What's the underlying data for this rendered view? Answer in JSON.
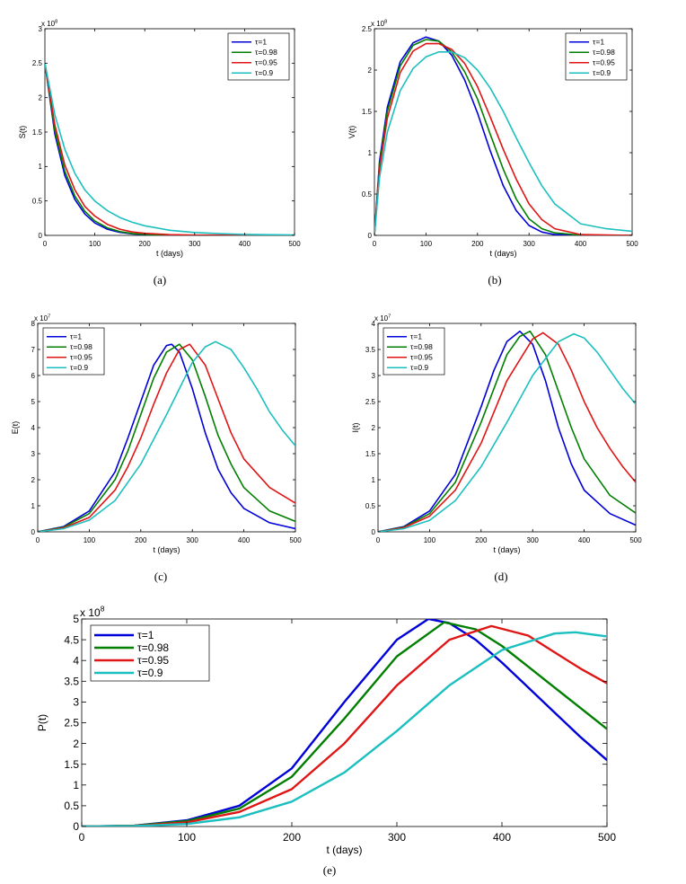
{
  "legend_labels": [
    "τ=1",
    "τ=0.98",
    "τ=0.95",
    "τ=0.9"
  ],
  "series_colors": [
    "#0000d8",
    "#007f00",
    "#e01515",
    "#1cbfbf"
  ],
  "chart_data": [
    {
      "id": "a",
      "caption": "(a)",
      "type": "line",
      "xlabel": "t (days)",
      "ylabel": "S(t)",
      "exponent_label": "x 10",
      "exponent_sup": "8",
      "xlim": [
        0,
        500
      ],
      "ylim": [
        0,
        3
      ],
      "xticks": [
        0,
        100,
        200,
        300,
        400,
        500
      ],
      "yticks": [
        0,
        0.5,
        1,
        1.5,
        2,
        2.5,
        3
      ],
      "legend_position": "top-right",
      "series": [
        {
          "name": "τ=1",
          "x": [
            0,
            20,
            40,
            60,
            80,
            100,
            125,
            150,
            175,
            200,
            250,
            300,
            500
          ],
          "y": [
            2.5,
            1.47,
            0.87,
            0.52,
            0.31,
            0.18,
            0.09,
            0.045,
            0.022,
            0.011,
            0.003,
            0.001,
            0
          ]
        },
        {
          "name": "τ=0.98",
          "x": [
            0,
            20,
            40,
            60,
            80,
            100,
            125,
            150,
            175,
            200,
            250,
            300,
            500
          ],
          "y": [
            2.5,
            1.52,
            0.93,
            0.57,
            0.35,
            0.21,
            0.11,
            0.055,
            0.028,
            0.015,
            0.004,
            0.001,
            0
          ]
        },
        {
          "name": "τ=0.95",
          "x": [
            0,
            20,
            40,
            60,
            80,
            100,
            125,
            150,
            175,
            200,
            250,
            300,
            500
          ],
          "y": [
            2.5,
            1.6,
            1.02,
            0.66,
            0.42,
            0.28,
            0.16,
            0.09,
            0.05,
            0.03,
            0.011,
            0.004,
            0
          ]
        },
        {
          "name": "τ=0.9",
          "x": [
            0,
            20,
            40,
            60,
            80,
            100,
            125,
            150,
            175,
            200,
            250,
            300,
            350,
            400,
            500
          ],
          "y": [
            2.5,
            1.75,
            1.25,
            0.9,
            0.66,
            0.5,
            0.36,
            0.26,
            0.19,
            0.14,
            0.075,
            0.042,
            0.025,
            0.015,
            0.005
          ]
        }
      ]
    },
    {
      "id": "b",
      "caption": "(b)",
      "type": "line",
      "xlabel": "t (days)",
      "ylabel": "V(t)",
      "exponent_label": "x 10",
      "exponent_sup": "8",
      "xlim": [
        0,
        500
      ],
      "ylim": [
        0,
        2.5
      ],
      "xticks": [
        0,
        100,
        200,
        300,
        400,
        500
      ],
      "yticks": [
        0,
        0.5,
        1,
        1.5,
        2,
        2.5
      ],
      "legend_position": "top-right",
      "series": [
        {
          "name": "τ=1",
          "x": [
            0,
            10,
            25,
            50,
            75,
            100,
            125,
            150,
            175,
            200,
            225,
            250,
            275,
            300,
            325,
            350,
            400,
            500
          ],
          "y": [
            0,
            0.9,
            1.55,
            2.1,
            2.33,
            2.4,
            2.35,
            2.18,
            1.88,
            1.48,
            1.02,
            0.6,
            0.3,
            0.12,
            0.04,
            0.01,
            0,
            0
          ]
        },
        {
          "name": "τ=0.98",
          "x": [
            0,
            10,
            25,
            50,
            75,
            100,
            125,
            150,
            175,
            200,
            225,
            250,
            275,
            300,
            325,
            350,
            400,
            500
          ],
          "y": [
            0,
            0.85,
            1.5,
            2.05,
            2.3,
            2.37,
            2.35,
            2.22,
            1.98,
            1.65,
            1.22,
            0.8,
            0.44,
            0.2,
            0.08,
            0.03,
            0.002,
            0
          ]
        },
        {
          "name": "τ=0.95",
          "x": [
            0,
            10,
            25,
            50,
            75,
            100,
            125,
            150,
            175,
            200,
            225,
            250,
            275,
            300,
            325,
            350,
            400,
            500
          ],
          "y": [
            0,
            0.8,
            1.42,
            1.97,
            2.23,
            2.32,
            2.32,
            2.25,
            2.08,
            1.8,
            1.43,
            1.04,
            0.68,
            0.38,
            0.19,
            0.08,
            0.01,
            0
          ]
        },
        {
          "name": "τ=0.9",
          "x": [
            0,
            10,
            25,
            50,
            75,
            100,
            125,
            150,
            175,
            200,
            225,
            250,
            275,
            300,
            325,
            350,
            400,
            450,
            500
          ],
          "y": [
            0,
            0.7,
            1.25,
            1.75,
            2.02,
            2.16,
            2.22,
            2.22,
            2.15,
            2.0,
            1.78,
            1.5,
            1.18,
            0.88,
            0.6,
            0.38,
            0.14,
            0.08,
            0.05
          ]
        }
      ]
    },
    {
      "id": "c",
      "caption": "(c)",
      "type": "line",
      "xlabel": "t (days)",
      "ylabel": "E(t)",
      "exponent_label": "x 10",
      "exponent_sup": "7",
      "xlim": [
        0,
        500
      ],
      "ylim": [
        0,
        8
      ],
      "xticks": [
        0,
        100,
        200,
        300,
        400,
        500
      ],
      "yticks": [
        0,
        1,
        2,
        3,
        4,
        5,
        6,
        7,
        8
      ],
      "legend_position": "top-left",
      "series": [
        {
          "name": "τ=1",
          "x": [
            0,
            50,
            100,
            150,
            175,
            200,
            225,
            250,
            260,
            275,
            300,
            325,
            350,
            375,
            400,
            450,
            500
          ],
          "y": [
            0,
            0.2,
            0.8,
            2.3,
            3.6,
            5.0,
            6.4,
            7.15,
            7.2,
            6.9,
            5.5,
            3.8,
            2.4,
            1.5,
            0.9,
            0.35,
            0.12
          ]
        },
        {
          "name": "τ=0.98",
          "x": [
            0,
            50,
            100,
            150,
            175,
            200,
            225,
            250,
            275,
            300,
            325,
            350,
            375,
            400,
            450,
            500
          ],
          "y": [
            0,
            0.18,
            0.7,
            2.0,
            3.1,
            4.5,
            5.9,
            6.9,
            7.2,
            6.6,
            5.2,
            3.7,
            2.6,
            1.7,
            0.8,
            0.4
          ]
        },
        {
          "name": "τ=0.95",
          "x": [
            0,
            50,
            100,
            150,
            175,
            200,
            225,
            250,
            275,
            295,
            325,
            350,
            375,
            400,
            450,
            500
          ],
          "y": [
            0,
            0.15,
            0.55,
            1.6,
            2.5,
            3.6,
            4.9,
            6.1,
            7.0,
            7.2,
            6.4,
            5.1,
            3.8,
            2.8,
            1.7,
            1.1
          ]
        },
        {
          "name": "τ=0.9",
          "x": [
            0,
            50,
            100,
            150,
            200,
            250,
            300,
            325,
            345,
            375,
            400,
            425,
            450,
            475,
            500
          ],
          "y": [
            0,
            0.12,
            0.45,
            1.2,
            2.6,
            4.5,
            6.5,
            7.1,
            7.3,
            7.0,
            6.3,
            5.5,
            4.6,
            3.9,
            3.3
          ]
        }
      ]
    },
    {
      "id": "d",
      "caption": "(d)",
      "type": "line",
      "xlabel": "t (days)",
      "ylabel": "I(t)",
      "exponent_label": "x 10",
      "exponent_sup": "7",
      "xlim": [
        0,
        500
      ],
      "ylim": [
        0,
        4
      ],
      "xticks": [
        0,
        100,
        200,
        300,
        400,
        500
      ],
      "yticks": [
        0,
        0.5,
        1,
        1.5,
        2,
        2.5,
        3,
        3.5,
        4
      ],
      "legend_position": "top-left",
      "series": [
        {
          "name": "τ=1",
          "x": [
            0,
            50,
            100,
            150,
            200,
            225,
            250,
            275,
            300,
            325,
            350,
            375,
            400,
            450,
            500
          ],
          "y": [
            0,
            0.1,
            0.4,
            1.1,
            2.4,
            3.1,
            3.65,
            3.85,
            3.6,
            2.9,
            2.0,
            1.3,
            0.8,
            0.35,
            0.13
          ]
        },
        {
          "name": "τ=0.98",
          "x": [
            0,
            50,
            100,
            150,
            200,
            250,
            275,
            295,
            325,
            350,
            375,
            400,
            450,
            500
          ],
          "y": [
            0,
            0.09,
            0.35,
            0.95,
            2.1,
            3.4,
            3.75,
            3.85,
            3.4,
            2.7,
            2.0,
            1.4,
            0.7,
            0.36
          ]
        },
        {
          "name": "τ=0.95",
          "x": [
            0,
            50,
            100,
            150,
            200,
            250,
            300,
            320,
            350,
            375,
            400,
            425,
            450,
            475,
            500
          ],
          "y": [
            0,
            0.08,
            0.3,
            0.8,
            1.7,
            2.9,
            3.7,
            3.82,
            3.6,
            3.1,
            2.5,
            2.0,
            1.6,
            1.25,
            0.95
          ]
        },
        {
          "name": "τ=0.9",
          "x": [
            0,
            50,
            100,
            150,
            200,
            250,
            300,
            350,
            380,
            400,
            425,
            450,
            475,
            500
          ],
          "y": [
            0,
            0.06,
            0.22,
            0.6,
            1.25,
            2.1,
            3.0,
            3.65,
            3.8,
            3.72,
            3.45,
            3.1,
            2.75,
            2.45
          ]
        }
      ]
    },
    {
      "id": "e",
      "caption": "(e)",
      "type": "line",
      "xlabel": "t (days)",
      "ylabel": "P(t)",
      "exponent_label": "x 10",
      "exponent_sup": "8",
      "xlim": [
        0,
        500
      ],
      "ylim": [
        0,
        5
      ],
      "xticks": [
        0,
        100,
        200,
        300,
        400,
        500
      ],
      "yticks": [
        0,
        0.5,
        1,
        1.5,
        2,
        2.5,
        3,
        3.5,
        4,
        4.5,
        5
      ],
      "legend_position": "top-left",
      "series": [
        {
          "name": "τ=1",
          "x": [
            0,
            50,
            100,
            150,
            200,
            250,
            300,
            330,
            350,
            375,
            400,
            425,
            450,
            475,
            500
          ],
          "y": [
            0,
            0.02,
            0.15,
            0.5,
            1.4,
            3.0,
            4.5,
            5.0,
            4.9,
            4.5,
            3.95,
            3.35,
            2.75,
            2.15,
            1.6
          ]
        },
        {
          "name": "τ=0.98",
          "x": [
            0,
            50,
            100,
            150,
            200,
            250,
            300,
            345,
            375,
            400,
            425,
            450,
            475,
            500
          ],
          "y": [
            0,
            0.02,
            0.13,
            0.43,
            1.2,
            2.6,
            4.1,
            4.92,
            4.75,
            4.35,
            3.85,
            3.35,
            2.85,
            2.35
          ]
        },
        {
          "name": "τ=0.95",
          "x": [
            0,
            50,
            100,
            150,
            200,
            250,
            300,
            350,
            390,
            425,
            450,
            475,
            500
          ],
          "y": [
            0,
            0.015,
            0.1,
            0.35,
            0.9,
            2.0,
            3.4,
            4.5,
            4.83,
            4.6,
            4.2,
            3.8,
            3.45
          ]
        },
        {
          "name": "τ=0.9",
          "x": [
            0,
            50,
            100,
            150,
            200,
            250,
            300,
            350,
            400,
            450,
            470,
            500
          ],
          "y": [
            0,
            0.01,
            0.06,
            0.22,
            0.6,
            1.3,
            2.3,
            3.4,
            4.25,
            4.65,
            4.68,
            4.58
          ]
        }
      ]
    }
  ]
}
